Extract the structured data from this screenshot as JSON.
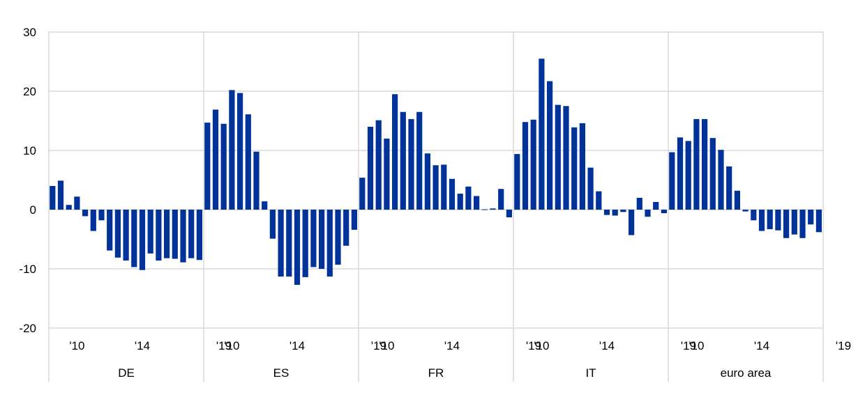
{
  "chart_data": {
    "type": "bar",
    "ylim": [
      -20,
      30
    ],
    "yticks": [
      "30",
      "20",
      "10",
      "0",
      "-10",
      "-20"
    ],
    "grid": true,
    "bar_color": "#003399",
    "x_tick_labels": [
      "'10",
      "'14",
      "'19"
    ],
    "x_tick_positions": [
      2010,
      2014,
      2019
    ],
    "start_year": 2008.5,
    "period": 0.5,
    "panels": [
      {
        "label": "DE",
        "values": [
          4.0,
          4.9,
          0.8,
          2.2,
          -1.1,
          -3.6,
          -1.8,
          -6.9,
          -8.1,
          -8.6,
          -9.7,
          -10.2,
          -7.4,
          -8.6,
          -8.2,
          -8.3,
          -8.9,
          -8.2,
          -8.5
        ]
      },
      {
        "label": "ES",
        "values": [
          14.7,
          16.9,
          14.5,
          20.2,
          19.7,
          16.1,
          9.8,
          1.4,
          -4.9,
          -11.3,
          -11.3,
          -12.7,
          -11.4,
          -9.7,
          -10.0,
          -11.3,
          -9.3,
          -6.1,
          -3.4
        ]
      },
      {
        "label": "FR",
        "values": [
          5.4,
          14.0,
          15.1,
          12.0,
          19.5,
          16.5,
          15.3,
          16.5,
          9.5,
          7.5,
          7.6,
          5.2,
          2.7,
          3.9,
          2.3,
          0.0,
          0.2,
          3.5,
          -1.3
        ]
      },
      {
        "label": "IT",
        "values": [
          9.4,
          14.8,
          15.2,
          25.5,
          21.7,
          17.7,
          17.5,
          13.9,
          14.6,
          7.1,
          3.1,
          -0.9,
          -1.0,
          -0.4,
          -4.3,
          2.0,
          -1.2,
          1.3,
          -0.6
        ]
      },
      {
        "label": "euro area",
        "values": [
          9.7,
          12.2,
          11.6,
          15.3,
          15.3,
          12.1,
          10.1,
          7.3,
          3.2,
          -0.3,
          -1.8,
          -3.6,
          -3.3,
          -3.5,
          -4.8,
          -4.2,
          -4.8,
          -2.5,
          -3.8
        ]
      }
    ]
  }
}
